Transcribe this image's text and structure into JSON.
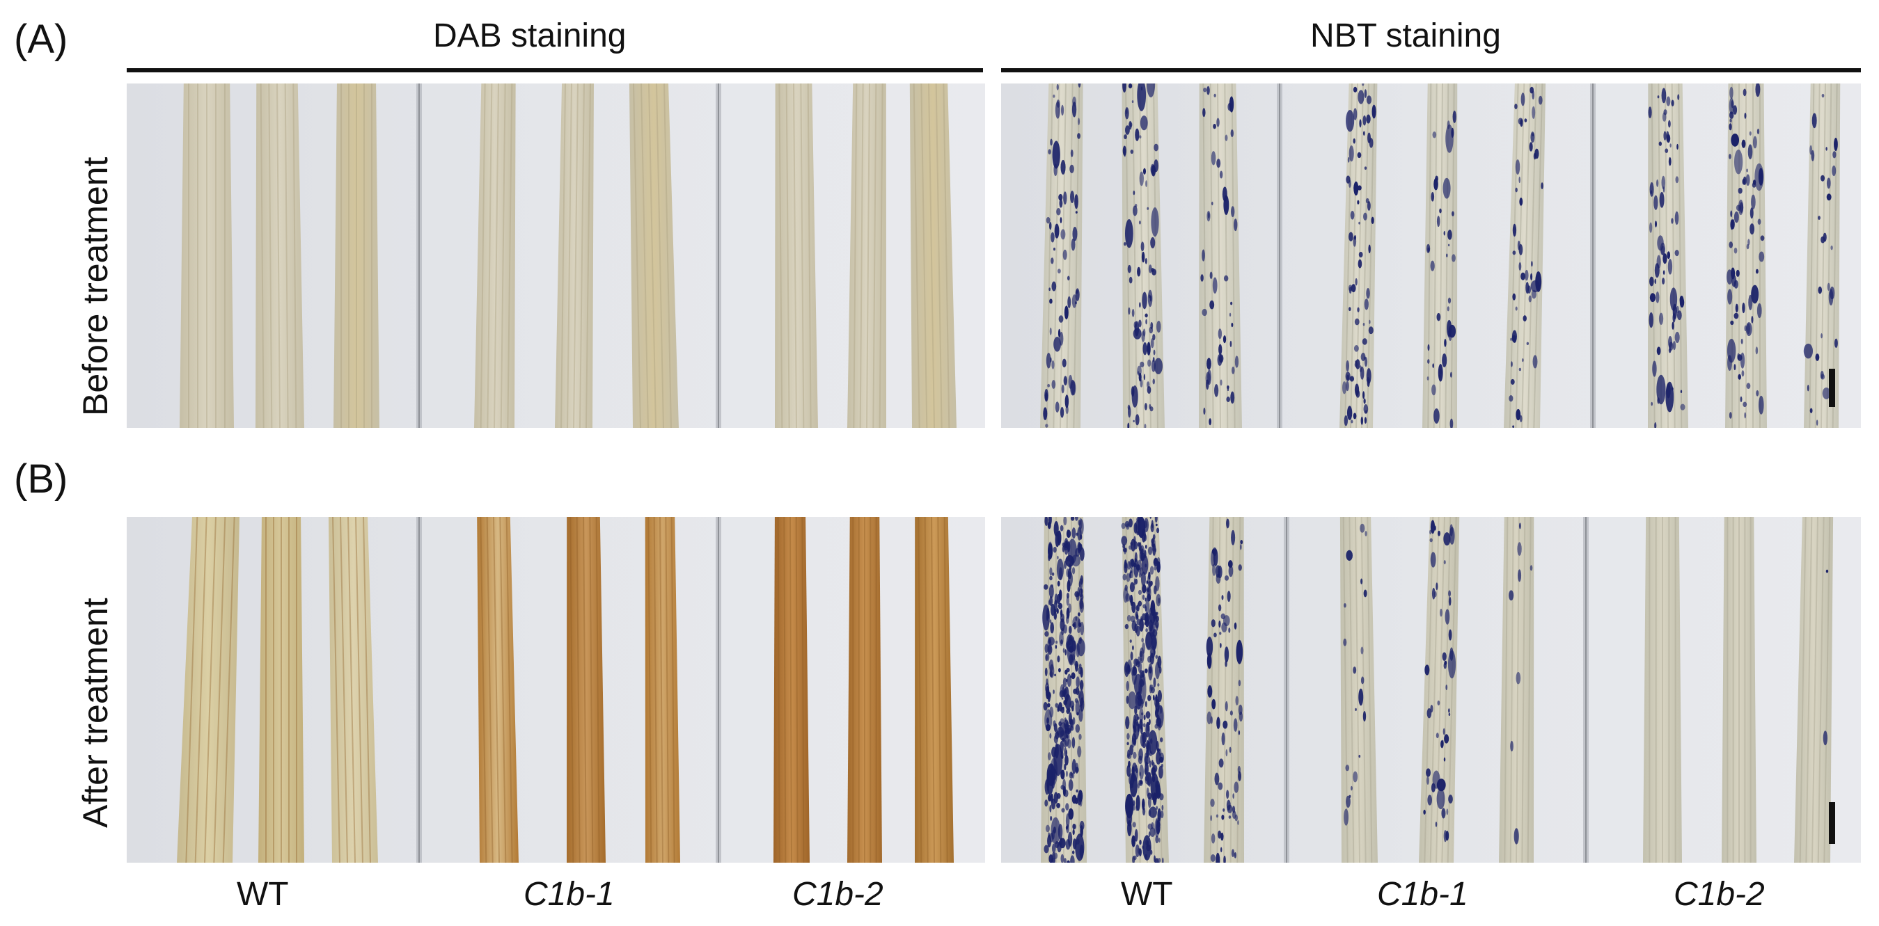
{
  "figure": {
    "panel_labels": {
      "a": "(A)",
      "b": "(B)"
    },
    "headers": {
      "dab": "DAB staining",
      "nbt": "NBT staining"
    },
    "row_labels": {
      "before": "Before treatment",
      "after": "After treatment"
    },
    "genotypes": {
      "dab": [
        "WT",
        "C1b-1",
        "C1b-2"
      ],
      "nbt": [
        "WT",
        "C1b-1",
        "C1b-2"
      ]
    },
    "colors": {
      "background": "#e4e6ea",
      "leaf_pale": "#d8d2bd",
      "dab_brown_light": "#d7b883",
      "dab_brown_dark": "#b27a35",
      "nbt_blue": "#1a2168",
      "scale_bar": "#111111"
    }
  }
}
